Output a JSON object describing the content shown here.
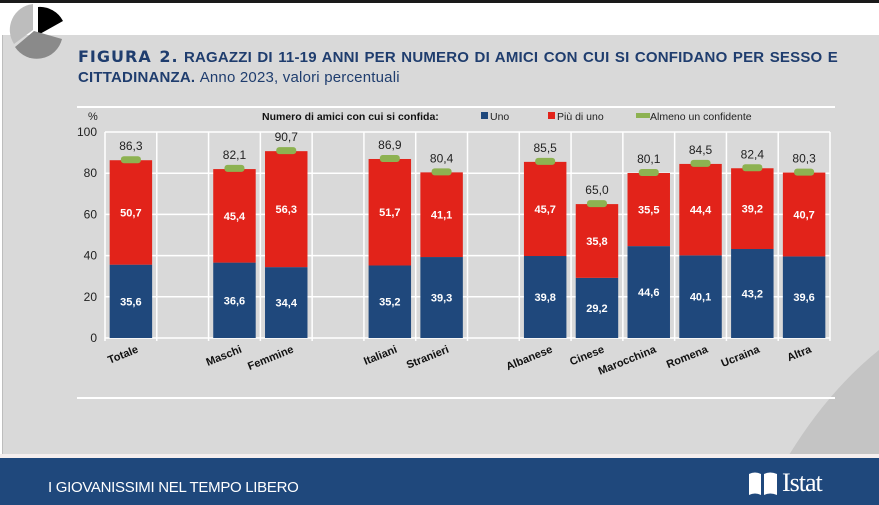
{
  "header": {
    "figure_label": "FIGURA 2.",
    "title_bold": "RAGAZZI DI 11-19 ANNI PER NUMERO DI AMICI CON CUI SI CONFIDANO PER SESSO E CITTADINANZA.",
    "title_sub": "Anno 2023, valori percentuali"
  },
  "footer": {
    "section_title": "I GIOVANISSIMI NEL TEMPO LIBERO",
    "brand": "Istat"
  },
  "colors": {
    "uno": "#1f487c",
    "piu_di_uno": "#e2231a",
    "almeno_un_confidente": "#8db251",
    "title": "#1f3d6e",
    "panel": "#d9d9d9"
  },
  "chart_data": {
    "type": "bar",
    "stacked": true,
    "title": "Numero di amici con cui si confida:",
    "ylabel": "%",
    "xlabel": "",
    "ylim": [
      0,
      100
    ],
    "yticks": [
      "0",
      "20",
      "40",
      "60",
      "80",
      "100"
    ],
    "grid": true,
    "legend_position": "top-right",
    "legend": [
      "Uno",
      "Più di uno",
      "Almeno un confidente"
    ],
    "categories": [
      "Totale",
      "",
      "Maschi",
      "Femmine",
      "",
      "Italiani",
      "Stranieri",
      "",
      "Albanese",
      "Cinese",
      "Marocchina",
      "Romena",
      "Ucraina",
      "Altra"
    ],
    "series": [
      {
        "name": "Uno",
        "values": [
          35.6,
          null,
          36.6,
          34.4,
          null,
          35.2,
          39.3,
          null,
          39.8,
          29.2,
          44.6,
          40.1,
          43.2,
          39.6
        ],
        "labels": [
          "35,6",
          "",
          "36,6",
          "34,4",
          "",
          "35,2",
          "39,3",
          "",
          "39,8",
          "29,2",
          "44,6",
          "40,1",
          "43,2",
          "39,6"
        ]
      },
      {
        "name": "Più di uno",
        "values": [
          50.7,
          null,
          45.4,
          56.3,
          null,
          51.7,
          41.1,
          null,
          45.7,
          35.8,
          35.5,
          44.4,
          39.2,
          40.7
        ],
        "labels": [
          "50,7",
          "",
          "45,4",
          "56,3",
          "",
          "51,7",
          "41,1",
          "",
          "45,7",
          "35,8",
          "35,5",
          "44,4",
          "39,2",
          "40,7"
        ]
      },
      {
        "name": "Almeno un confidente",
        "values": [
          86.3,
          null,
          82.1,
          90.7,
          null,
          86.9,
          80.4,
          null,
          85.5,
          65.0,
          80.1,
          84.5,
          82.4,
          80.3
        ],
        "labels": [
          "86,3",
          "",
          "82,1",
          "90,7",
          "",
          "86,9",
          "80,4",
          "",
          "85,5",
          "65,0",
          "80,1",
          "84,5",
          "82,4",
          "80,3"
        ]
      }
    ]
  }
}
